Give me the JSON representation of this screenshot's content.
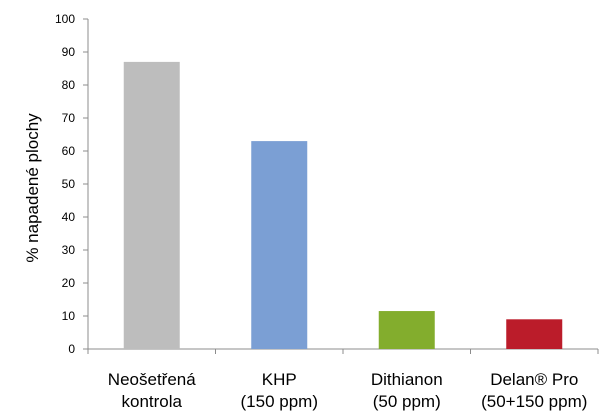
{
  "chart_data": {
    "type": "bar",
    "categories": [
      [
        "Neošetřená",
        "kontrola"
      ],
      [
        "KHP",
        "(150 ppm)"
      ],
      [
        "Dithianon",
        "(50 ppm)"
      ],
      [
        "Delan® Pro",
        "(50+150 ppm)"
      ]
    ],
    "values": [
      87,
      63,
      11.5,
      9
    ],
    "colors": [
      "#bdbdbd",
      "#7b9fd4",
      "#83ad2d",
      "#bb1c2a"
    ],
    "ylabel": "% napadené plochy",
    "ylim": [
      0,
      100
    ],
    "yticks": [
      "0",
      "10",
      "20",
      "30",
      "40",
      "50",
      "60",
      "70",
      "80",
      "90",
      "100"
    ],
    "grid": false,
    "legend": "none"
  }
}
